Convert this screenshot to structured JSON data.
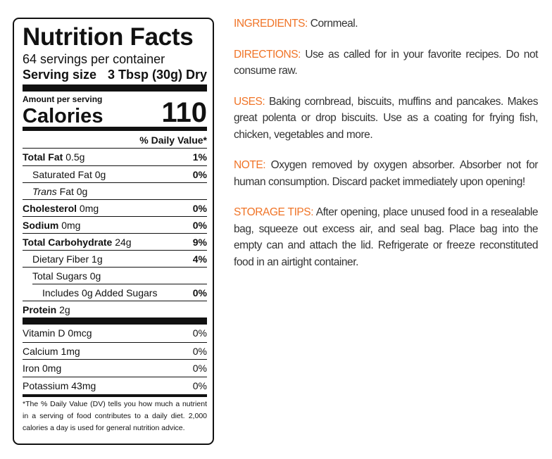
{
  "label": {
    "title": "Nutrition Facts",
    "servings": "64 servings per container",
    "serving_size_label": "Serving size",
    "serving_size_value": "3 Tbsp (30g) Dry",
    "amount_per_serving": "Amount per serving",
    "calories_label": "Calories",
    "calories_value": "110",
    "daily_value_header": "% Daily Value*",
    "rows": [
      {
        "name": "Total Fat",
        "amount": "0.5g",
        "dv": "1%",
        "bold": true,
        "indent": 0
      },
      {
        "name": "Saturated Fat",
        "amount": "0g",
        "dv": "0%",
        "bold": false,
        "indent": 1
      },
      {
        "italic": "Trans",
        "name": "Fat",
        "amount": "0g",
        "bold": false,
        "indent": 1
      },
      {
        "name": "Cholesterol",
        "amount": "0mg",
        "dv": "0%",
        "bold": true,
        "indent": 0
      },
      {
        "name": "Sodium",
        "amount": "0mg",
        "dv": "0%",
        "bold": true,
        "indent": 0
      },
      {
        "name": "Total Carbohydrate",
        "amount": "24g",
        "dv": "9%",
        "bold": true,
        "indent": 0
      },
      {
        "name": "Dietary Fiber",
        "amount": "1g",
        "dv": "4%",
        "bold": false,
        "indent": 1
      },
      {
        "name": "Total Sugars",
        "amount": "0g",
        "bold": false,
        "indent": 1
      },
      {
        "name": "Includes 0g Added Sugars",
        "dv": "0%",
        "bold": false,
        "indent": 2
      },
      {
        "name": "Protein",
        "amount": "2g",
        "bold": true,
        "indent": 0
      }
    ],
    "vitamins": [
      {
        "name": "Vitamin D 0mcg",
        "dv": "0%"
      },
      {
        "name": "Calcium 1mg",
        "dv": "0%"
      },
      {
        "name": "Iron 0mg",
        "dv": "0%"
      },
      {
        "name": "Potassium 43mg",
        "dv": "0%"
      }
    ],
    "footnote": "*The % Daily Value (DV) tells you how much a nutrient in a serving of food contributes to a daily diet. 2,000 calories a day is used for general nutrition advice."
  },
  "sections": [
    {
      "heading": "INGREDIENTS:",
      "text": "Cornmeal."
    },
    {
      "heading": "DIRECTIONS:",
      "text": "Use as called for in your favorite recipes. Do not consume raw."
    },
    {
      "heading": "USES:",
      "text": "Baking cornbread, biscuits, muffins and pancakes. Makes great polenta or drop biscuits. Use as a coating for frying fish, chicken, vegetables and more."
    },
    {
      "heading": "NOTE:",
      "text": "Oxygen removed by oxygen absorber. Absorber not for human consumption. Discard packet immediately upon opening!"
    },
    {
      "heading": "STORAGE TIPS:",
      "text": "After opening, place unused food in a resealable bag, squeeze out excess air, and seal bag. Place bag into the empty can and attach the lid. Refrigerate or freeze reconstituted food in an airtight container."
    }
  ]
}
